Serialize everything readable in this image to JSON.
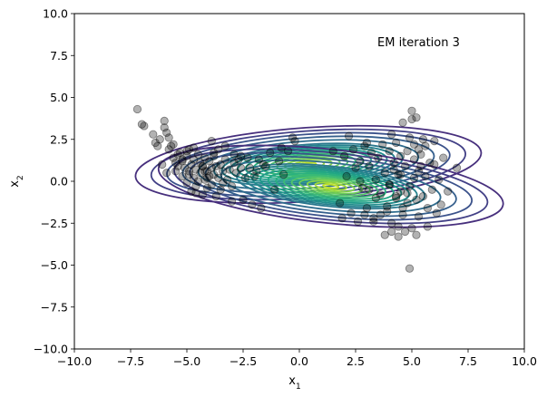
{
  "chart_data": {
    "type": "scatter",
    "title": "",
    "annotation": "EM iteration 3",
    "xlabel": "x",
    "xlabel_sub": "1",
    "ylabel": "x",
    "ylabel_sub": "2",
    "xlim": [
      -10,
      10
    ],
    "ylim": [
      -10,
      10
    ],
    "grid": false,
    "xticks": [
      -10,
      -7.5,
      -5,
      -2.5,
      0,
      2.5,
      5,
      7.5,
      10
    ],
    "yticks": [
      -10,
      -7.5,
      -5,
      -2.5,
      0,
      2.5,
      5,
      7.5,
      10
    ],
    "xtick_labels": [
      "−10.0",
      "−7.5",
      "−5.0",
      "−2.5",
      "0.0",
      "2.5",
      "5.0",
      "7.5",
      "10.0"
    ],
    "ytick_labels": [
      "−10.0",
      "−7.5",
      "−5.0",
      "−2.5",
      "0.0",
      "2.5",
      "5.0",
      "7.5",
      "10.0"
    ],
    "point_color": "#000000",
    "point_alpha": 0.3,
    "components": [
      {
        "mean": [
          0.4,
          1.0
        ],
        "axes": [
          0.35,
          0.1
        ],
        "angle": -4,
        "contour_levels": [
          1,
          2,
          3,
          4,
          5,
          6,
          7,
          8,
          9,
          10,
          11,
          12,
          14,
          16,
          18,
          20,
          22
        ],
        "colors": [
          "#bddf26",
          "#a2da37",
          "#86d549",
          "#6ccd5a",
          "#52c569",
          "#3aba76",
          "#2ab07f",
          "#21a685",
          "#1f9a8a",
          "#228d8d",
          "#26828e",
          "#2a788e",
          "#2f6c8e",
          "#355f8d",
          "#3b528b",
          "#424086",
          "#472f7d"
        ]
      },
      {
        "mean": [
          1.4,
          -0.3
        ],
        "axes": [
          0.35,
          0.1
        ],
        "angle": 6,
        "contour_levels": [
          1,
          2,
          3,
          4,
          5,
          6,
          7,
          8,
          9,
          10,
          11,
          12,
          14,
          16,
          18,
          20,
          22
        ],
        "colors": [
          "#bddf26",
          "#a2da37",
          "#86d549",
          "#6ccd5a",
          "#52c569",
          "#3aba76",
          "#2ab07f",
          "#21a685",
          "#1f9a8a",
          "#228d8d",
          "#26828e",
          "#2a788e",
          "#2f6c8e",
          "#355f8d",
          "#3b528b",
          "#424086",
          "#472f7d"
        ]
      }
    ],
    "cluster_A": {
      "x": [
        -7.2,
        -7.0,
        -6.9,
        -6.5,
        -6.4,
        -6.2,
        -6.0,
        -6.0,
        -5.9,
        -5.8,
        -5.8,
        -5.7,
        -5.6,
        -5.5,
        -5.5,
        -5.4,
        -5.3,
        -5.2,
        -5.2,
        -5.1,
        -5.0,
        -5.0,
        -4.9,
        -4.9,
        -4.8,
        -4.8,
        -4.7,
        -4.7,
        -4.6,
        -4.6,
        -4.5,
        -4.5,
        -4.4,
        -4.4,
        -4.3,
        -4.3,
        -4.2,
        -4.2,
        -4.1,
        -4.1,
        -4.0,
        -4.0,
        -3.9,
        -3.9,
        -3.8,
        -3.8,
        -3.7,
        -3.7,
        -3.6,
        -3.5,
        -3.5,
        -3.4,
        -3.3,
        -3.2,
        -3.1,
        -3.0,
        -2.9,
        -2.8,
        -2.6,
        -2.5,
        -2.3,
        -2.1,
        -1.9,
        -1.7,
        -1.5,
        -1.3,
        -1.1,
        -0.9,
        -0.7,
        -0.5,
        -0.3,
        -6.3,
        -5.9,
        -5.6,
        -5.0,
        -4.6,
        -3.9,
        -3.6,
        -2.9,
        -2.4,
        -1.8,
        -5.4,
        -4.7,
        -4.2,
        -3.3,
        -3.0,
        -2.2,
        -6.1,
        -5.2,
        -4.3,
        -3.8,
        -2.7,
        -2.0,
        -1.6,
        -0.8,
        -0.2,
        -4.9,
        -4.1,
        -3.4,
        -2.6
      ],
      "y": [
        4.3,
        3.4,
        3.3,
        2.8,
        2.3,
        2.5,
        3.6,
        3.2,
        2.9,
        2.6,
        1.9,
        2.1,
        1.4,
        1.1,
        0.6,
        0.9,
        1.7,
        1.2,
        0.3,
        0.8,
        1.5,
        -0.1,
        0.4,
        1.9,
        1.0,
        -0.6,
        0.2,
        1.3,
        0.7,
        -0.3,
        1.6,
        0.0,
        0.5,
        1.1,
        -0.8,
        0.9,
        1.4,
        0.1,
        0.6,
        -0.4,
        1.2,
        0.3,
        0.8,
        -0.2,
        1.5,
        0.4,
        -0.9,
        0.9,
        0.2,
        1.0,
        -0.5,
        0.6,
        1.3,
        0.1,
        0.7,
        -0.3,
        1.1,
        0.5,
        0.8,
        -1.1,
        1.4,
        -1.4,
        0.6,
        -1.6,
        0.9,
        1.7,
        -0.5,
        1.2,
        0.4,
        1.8,
        2.6,
        2.1,
        0.5,
        2.2,
        1.8,
        -0.7,
        2.4,
        1.9,
        1.6,
        0.2,
        1.3,
        1.6,
        2.0,
        0.6,
        2.1,
        -1.2,
        0.8,
        1.0,
        1.3,
        0.9,
        1.7,
        1.3,
        0.3,
        1.0,
        2.0,
        2.4,
        0.6,
        0.2,
        -0.1,
        1.5
      ]
    },
    "cluster_B": {
      "x": [
        1.5,
        1.8,
        2.0,
        2.1,
        2.3,
        2.4,
        2.5,
        2.6,
        2.7,
        2.8,
        2.9,
        3.0,
        3.1,
        3.2,
        3.3,
        3.4,
        3.5,
        3.6,
        3.7,
        3.8,
        3.9,
        4.0,
        4.0,
        4.1,
        4.1,
        4.2,
        4.2,
        4.3,
        4.3,
        4.4,
        4.4,
        4.5,
        4.5,
        4.6,
        4.6,
        4.7,
        4.7,
        4.8,
        4.8,
        4.9,
        4.9,
        5.0,
        5.0,
        5.1,
        5.1,
        5.2,
        5.2,
        5.3,
        5.3,
        5.4,
        5.5,
        5.5,
        5.6,
        5.7,
        5.8,
        5.9,
        6.0,
        6.1,
        6.2,
        6.4,
        6.6,
        7.0,
        5.0,
        4.9,
        5.2,
        4.4,
        3.8,
        4.1,
        2.9,
        3.3,
        5.7,
        6.3,
        3.6,
        4.6,
        5.4,
        2.2,
        3.0,
        4.3,
        5.1,
        3.9,
        6.0,
        4.8,
        2.7,
        3.4,
        4.0,
        5.6,
        1.9,
        3.1,
        4.5,
        5.3
      ],
      "y": [
        1.8,
        -1.3,
        1.5,
        0.3,
        -1.9,
        1.9,
        0.8,
        -2.4,
        1.2,
        -0.4,
        2.1,
        -1.6,
        0.9,
        1.7,
        -2.2,
        0.1,
        1.4,
        -0.8,
        2.2,
        0.5,
        -1.5,
        1.8,
        -0.2,
        2.8,
        -2.5,
        0.7,
        1.1,
        -1.0,
        2.3,
        -2.7,
        0.4,
        1.5,
        -0.6,
        3.5,
        -2.0,
        0.9,
        -3.0,
        1.8,
        -1.3,
        2.6,
        -0.3,
        3.7,
        -2.8,
        0.2,
        2.2,
        -1.1,
        3.8,
        0.6,
        -2.1,
        1.6,
        -0.9,
        2.5,
        0.3,
        -1.6,
        1.1,
        -0.5,
        2.4,
        -1.9,
        0.1,
        1.4,
        -0.6,
        0.8,
        4.2,
        -5.2,
        -3.2,
        -3.3,
        -3.2,
        -3.0,
        -2.0,
        -2.4,
        -2.7,
        -1.4,
        -2.0,
        -1.6,
        0.9,
        2.7,
        2.3,
        -0.9,
        1.3,
        -1.8,
        1.0,
        -0.7,
        0.0,
        -1.0,
        -0.2,
        2.1,
        -2.2,
        -0.5,
        0.4,
        1.9
      ]
    }
  }
}
